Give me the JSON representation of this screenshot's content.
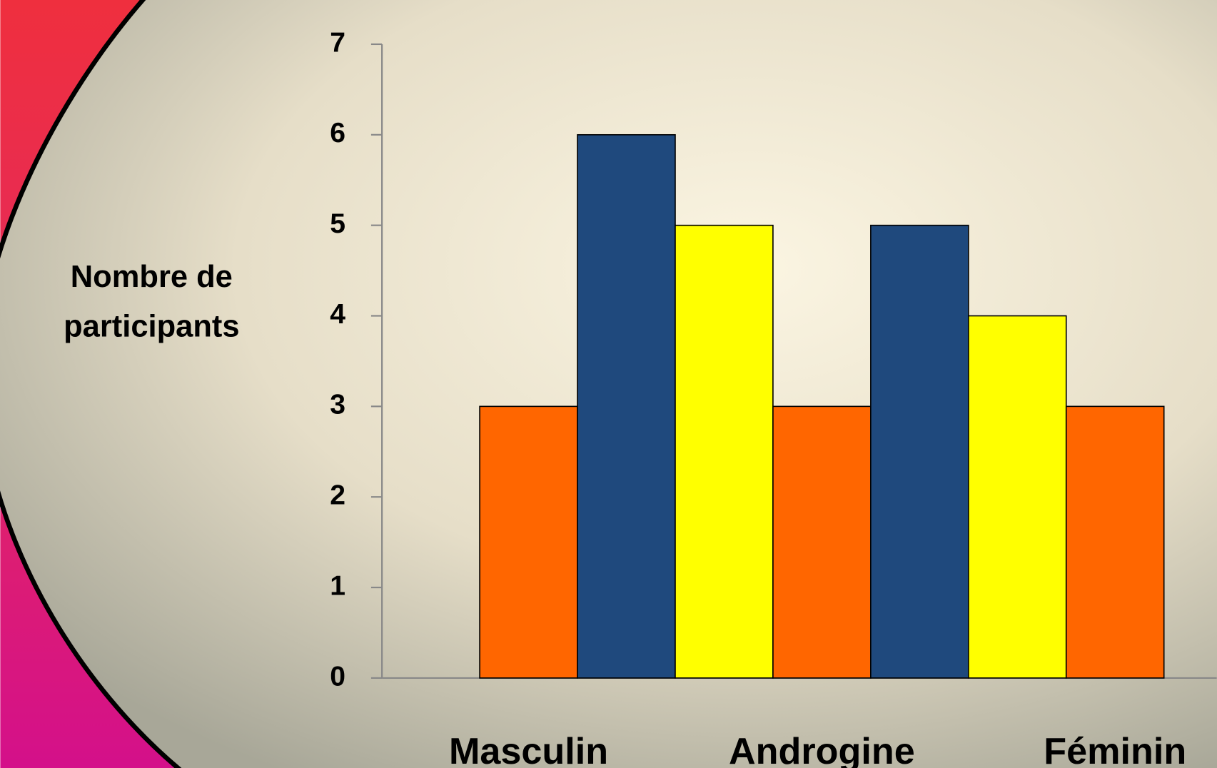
{
  "chart_data": {
    "type": "bar",
    "y_label": "Nombre de participants",
    "categories": [
      "Masculin",
      "Androgine",
      "Féminin"
    ],
    "series": [
      {
        "color": "#ff6600",
        "values": [
          3,
          3,
          3
        ]
      },
      {
        "color": "#1f497d",
        "values": [
          6,
          5,
          null
        ]
      },
      {
        "color": "#ffff00",
        "values": [
          5,
          4,
          null
        ]
      }
    ],
    "ylim": [
      0,
      7
    ],
    "yticks": [
      0,
      1,
      2,
      3,
      4,
      5,
      6,
      7
    ],
    "grid": false
  }
}
